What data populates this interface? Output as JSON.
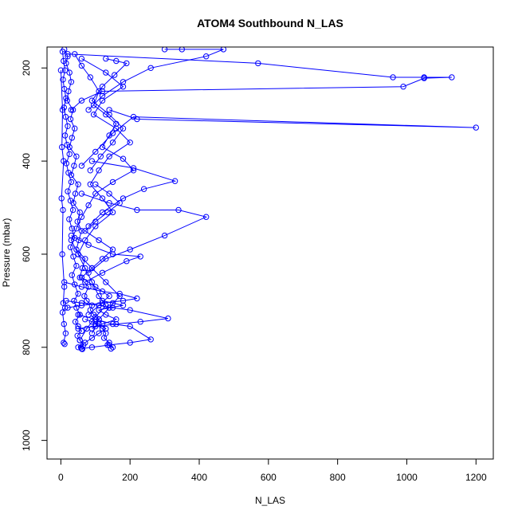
{
  "chart_data": {
    "type": "line",
    "title": "ATOM4 Southbound N_LAS",
    "xlabel": "N_LAS",
    "ylabel": "Pressure (mbar)",
    "xlim": [
      -40,
      1250
    ],
    "ylim": [
      1040,
      155
    ],
    "y_reversed": true,
    "grid": false,
    "x_ticks": [
      "0",
      "200",
      "400",
      "600",
      "800",
      "1000",
      "1200"
    ],
    "x_tick_values": [
      0,
      200,
      400,
      600,
      800,
      1000,
      1200
    ],
    "y_ticks": [
      "200",
      "400",
      "600",
      "800",
      "1000"
    ],
    "y_tick_values": [
      200,
      400,
      600,
      800,
      1000
    ],
    "color": "#0000ff",
    "series": [
      {
        "x": [
          10,
          20,
          15,
          25,
          30,
          22,
          18,
          35,
          28,
          40,
          32,
          25,
          45,
          38,
          30,
          50,
          42,
          36,
          55,
          48,
          60,
          52,
          45,
          70,
          62,
          55,
          80,
          68,
          75,
          90,
          85,
          95,
          110,
          100,
          120,
          130,
          125,
          140,
          135,
          150,
          145
        ],
        "y": [
          160,
          175,
          190,
          210,
          230,
          250,
          270,
          290,
          310,
          330,
          350,
          370,
          390,
          410,
          430,
          450,
          470,
          490,
          510,
          530,
          550,
          570,
          590,
          610,
          630,
          650,
          670,
          690,
          700,
          710,
          720,
          730,
          740,
          750,
          760,
          770,
          780,
          790,
          795,
          800,
          803
        ]
      },
      {
        "x": [
          5,
          8,
          12,
          6,
          10,
          15,
          9,
          14,
          20,
          12,
          18,
          25,
          16,
          22,
          30,
          20,
          28,
          35,
          24,
          32,
          40,
          28,
          36,
          45,
          32,
          40,
          50,
          38,
          45,
          55,
          42,
          50,
          60,
          48,
          55,
          65,
          58,
          62
        ],
        "y": [
          165,
          185,
          205,
          225,
          245,
          265,
          285,
          305,
          325,
          345,
          365,
          385,
          405,
          425,
          445,
          465,
          485,
          505,
          525,
          545,
          565,
          585,
          605,
          625,
          645,
          665,
          685,
          700,
          715,
          730,
          745,
          755,
          765,
          775,
          785,
          795,
          800,
          804
        ]
      },
      {
        "x": [
          40,
          60,
          85,
          110,
          95,
          130,
          160,
          140,
          120,
          180,
          210,
          150,
          100,
          80,
          60,
          45,
          30,
          50,
          70,
          90,
          110,
          130,
          100,
          75,
          55
        ],
        "y": [
          170,
          195,
          220,
          250,
          280,
          300,
          320,
          345,
          370,
          395,
          420,
          445,
          470,
          495,
          520,
          545,
          570,
          600,
          630,
          660,
          690,
          710,
          735,
          760,
          785
        ]
      },
      {
        "x": [
          60,
          130,
          180,
          120,
          95,
          160,
          200,
          140,
          110,
          85,
          120,
          150,
          100,
          70,
          50,
          90,
          130,
          170,
          140,
          110,
          90
        ],
        "y": [
          180,
          210,
          240,
          270,
          300,
          330,
          360,
          390,
          420,
          450,
          480,
          510,
          540,
          570,
          600,
          630,
          660,
          690,
          715,
          740,
          770
        ]
      },
      {
        "x": [
          20,
          570,
          960,
          1050,
          1130,
          1050,
          990,
          120,
          60,
          30
        ],
        "y": [
          170,
          190,
          220,
          220,
          220,
          222,
          240,
          250,
          270,
          290
        ]
      },
      {
        "x": [
          140,
          220,
          1200,
          210,
          150,
          100,
          60
        ],
        "y": [
          290,
          310,
          328,
          305,
          340,
          380,
          410
        ]
      },
      {
        "x": [
          90,
          210,
          330,
          240,
          180,
          120,
          80
        ],
        "y": [
          400,
          415,
          443,
          460,
          480,
          510,
          540
        ]
      },
      {
        "x": [
          60,
          140,
          220,
          340,
          420,
          300,
          200,
          130,
          80
        ],
        "y": [
          470,
          490,
          505,
          505,
          520,
          560,
          590,
          610,
          640
        ]
      },
      {
        "x": [
          30,
          80,
          150,
          230,
          190,
          120,
          70
        ],
        "y": [
          560,
          580,
          600,
          605,
          615,
          640,
          660
        ]
      },
      {
        "x": [
          10,
          60,
          120,
          170,
          220,
          180,
          120,
          60,
          20
        ],
        "y": [
          660,
          670,
          680,
          685,
          695,
          700,
          705,
          710,
          715
        ]
      },
      {
        "x": [
          15,
          60,
          110,
          150,
          200,
          310,
          230,
          160,
          100,
          50
        ],
        "y": [
          700,
          705,
          710,
          715,
          720,
          738,
          745,
          750,
          755,
          760
        ]
      },
      {
        "x": [
          50,
          100,
          150,
          200,
          260,
          200,
          140,
          90,
          60
        ],
        "y": [
          730,
          740,
          750,
          755,
          783,
          790,
          795,
          800,
          803
        ]
      },
      {
        "x": [
          0,
          5,
          3,
          8,
          2,
          6,
          4,
          10,
          7,
          12,
          5,
          9,
          14,
          8,
          11
        ],
        "y": [
          205,
          290,
          370,
          400,
          480,
          505,
          600,
          670,
          705,
          715,
          725,
          750,
          770,
          790,
          793
        ]
      },
      {
        "x": [
          300,
          350,
          470,
          420,
          260,
          180,
          120,
          80
        ],
        "y": [
          160,
          160,
          160,
          175,
          200,
          230,
          260,
          290
        ]
      },
      {
        "x": [
          130,
          160,
          190,
          155,
          120,
          90,
          140,
          180,
          150,
          115,
          85
        ],
        "y": [
          180,
          185,
          190,
          215,
          240,
          270,
          300,
          330,
          360,
          390,
          420
        ]
      },
      {
        "x": [
          100,
          140,
          170,
          135,
          100,
          70,
          110,
          150,
          120,
          90,
          60,
          100,
          140,
          110,
          80
        ],
        "y": [
          450,
          470,
          490,
          510,
          530,
          550,
          570,
          590,
          610,
          630,
          650,
          670,
          690,
          710,
          730
        ]
      },
      {
        "x": [
          120,
          150,
          180,
          140,
          110,
          130,
          160,
          120,
          90
        ],
        "y": [
          700,
          705,
          710,
          715,
          720,
          730,
          740,
          750,
          760
        ]
      },
      {
        "x": [
          70,
          90,
          110,
          130,
          110,
          90,
          70,
          50
        ],
        "y": [
          740,
          745,
          750,
          760,
          770,
          780,
          790,
          800
        ]
      }
    ]
  }
}
